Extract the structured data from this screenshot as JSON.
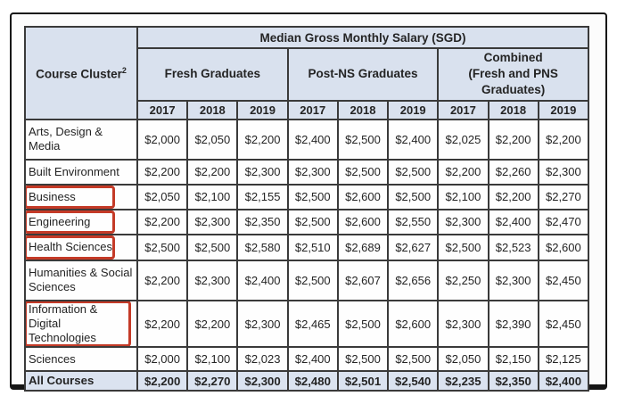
{
  "colors": {
    "header_bg": "#d9e1ee",
    "total_row_bg": "#dbe3f0",
    "grid": "#3a3a3a",
    "outer_border": "#151515",
    "highlight_red": "#c43a27",
    "text": "#242424"
  },
  "table": {
    "corner_header": "Course Cluster",
    "corner_superscript": "2",
    "main_header": "Median Gross Monthly Salary (SGD)",
    "group_headers": [
      "Fresh Graduates",
      "Post-NS Graduates",
      "Combined\n(Fresh and PNS\nGraduates)"
    ],
    "year_headers": [
      "2017",
      "2018",
      "2019",
      "2017",
      "2018",
      "2019",
      "2017",
      "2018",
      "2019"
    ],
    "rows": [
      {
        "label": "Arts, Design & Media",
        "highlighted": false,
        "total": false,
        "values": [
          "$2,000",
          "$2,050",
          "$2,200",
          "$2,400",
          "$2,500",
          "$2,400",
          "$2,025",
          "$2,200",
          "$2,200"
        ]
      },
      {
        "label": "Built Environment",
        "highlighted": false,
        "total": false,
        "values": [
          "$2,200",
          "$2,200",
          "$2,300",
          "$2,300",
          "$2,500",
          "$2,500",
          "$2,200",
          "$2,260",
          "$2,300"
        ]
      },
      {
        "label": "Business",
        "highlighted": true,
        "total": false,
        "values": [
          "$2,050",
          "$2,100",
          "$2,155",
          "$2,500",
          "$2,600",
          "$2,500",
          "$2,100",
          "$2,200",
          "$2,270"
        ]
      },
      {
        "label": "Engineering",
        "highlighted": true,
        "total": false,
        "values": [
          "$2,200",
          "$2,300",
          "$2,350",
          "$2,500",
          "$2,600",
          "$2,550",
          "$2,300",
          "$2,400",
          "$2,470"
        ]
      },
      {
        "label": "Health Sciences",
        "highlighted": true,
        "total": false,
        "values": [
          "$2,500",
          "$2,500",
          "$2,580",
          "$2,510",
          "$2,689",
          "$2,627",
          "$2,500",
          "$2,523",
          "$2,600"
        ]
      },
      {
        "label": "Humanities & Social Sciences",
        "highlighted": false,
        "total": false,
        "values": [
          "$2,200",
          "$2,300",
          "$2,400",
          "$2,500",
          "$2,607",
          "$2,656",
          "$2,250",
          "$2,300",
          "$2,450"
        ]
      },
      {
        "label": "Information & Digital Technologies",
        "highlighted": true,
        "wide_box": true,
        "total": false,
        "values": [
          "$2,200",
          "$2,200",
          "$2,300",
          "$2,465",
          "$2,500",
          "$2,600",
          "$2,300",
          "$2,390",
          "$2,450"
        ]
      },
      {
        "label": "Sciences",
        "highlighted": false,
        "total": false,
        "values": [
          "$2,000",
          "$2,100",
          "$2,023",
          "$2,400",
          "$2,500",
          "$2,500",
          "$2,050",
          "$2,150",
          "$2,125"
        ]
      },
      {
        "label": "All Courses",
        "highlighted": false,
        "total": true,
        "values": [
          "$2,200",
          "$2,270",
          "$2,300",
          "$2,480",
          "$2,501",
          "$2,540",
          "$2,235",
          "$2,350",
          "$2,400"
        ]
      }
    ]
  }
}
